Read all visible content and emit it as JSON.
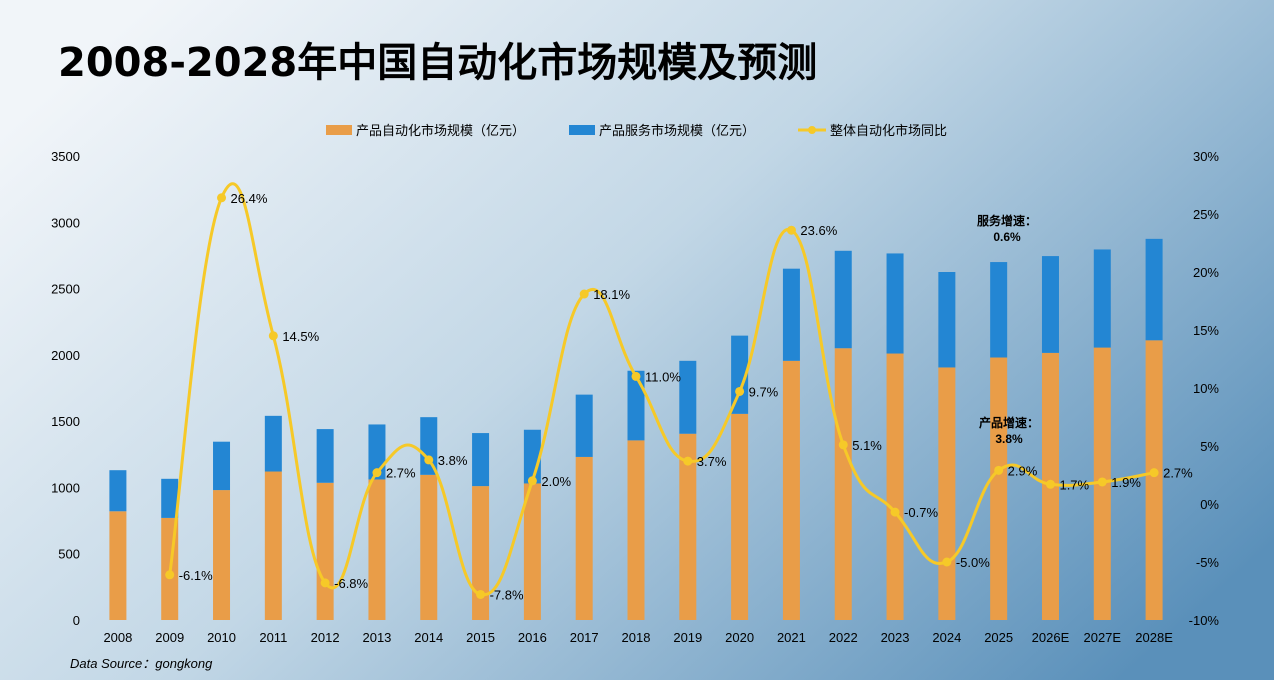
{
  "colors": {
    "product": "#E99D48",
    "service": "#2386D3",
    "growth": "#F6C928",
    "bg_left": "#EEF3F8",
    "bg_right": "#5E94BC"
  },
  "chart_data": {
    "type": "bar",
    "title": "2008-2028年中国自动化市场规模及预测",
    "source": "Data Source：gongkong",
    "categories": [
      "2008",
      "2009",
      "2010",
      "2011",
      "2012",
      "2013",
      "2014",
      "2015",
      "2016",
      "2017",
      "2018",
      "2019",
      "2020",
      "2021",
      "2022",
      "2023",
      "2024",
      "2025",
      "2026E",
      "2027E",
      "2028E"
    ],
    "stacked": true,
    "series": [
      {
        "name": "产品自动化市场规模（亿元）",
        "kind": "bar",
        "axis": "left",
        "values": [
          820,
          770,
          980,
          1120,
          1035,
          1060,
          1095,
          1010,
          1030,
          1230,
          1355,
          1405,
          1555,
          1955,
          2050,
          2010,
          1905,
          1980,
          2015,
          2055,
          2110
        ]
      },
      {
        "name": "产品服务市场规模（亿元）",
        "kind": "bar",
        "axis": "left",
        "values": [
          310,
          295,
          365,
          420,
          405,
          415,
          435,
          400,
          405,
          470,
          525,
          550,
          590,
          695,
          735,
          755,
          720,
          720,
          730,
          740,
          765
        ]
      },
      {
        "name": "整体自动化市场同比",
        "kind": "line",
        "axis": "right",
        "values": [
          null,
          -6.1,
          26.4,
          14.5,
          -6.8,
          2.7,
          3.8,
          -7.8,
          2.0,
          18.1,
          11.0,
          3.7,
          9.7,
          23.6,
          5.1,
          -0.7,
          -5.0,
          2.9,
          1.7,
          1.9,
          2.7
        ],
        "labels": [
          null,
          "-6.1%",
          "26.4%",
          "14.5%",
          "-6.8%",
          "2.7%",
          "3.8%",
          "-7.8%",
          "2.0%",
          "18.1%",
          "11.0%",
          "3.7%",
          "9.7%",
          "23.6%",
          "5.1%",
          "-0.7%",
          "-5.0%",
          "2.9%",
          "1.7%",
          "1.9%",
          "2.7%"
        ]
      }
    ],
    "y_left": {
      "min": 0,
      "max": 3500,
      "ticks": [
        "0",
        "500",
        "1000",
        "1500",
        "2000",
        "2500",
        "3000",
        "3500"
      ]
    },
    "y_right": {
      "min": -10,
      "max": 30,
      "ticks": [
        "-10%",
        "-5%",
        "0%",
        "5%",
        "10%",
        "15%",
        "20%",
        "25%",
        "30%"
      ]
    },
    "grid": false,
    "legend_position": "top-center",
    "annotations": [
      {
        "line1": "服务增速：",
        "line2": "0.6%",
        "near": "2026E"
      },
      {
        "line1": "产品增速：",
        "line2": "3.8%",
        "near": "2026E"
      }
    ]
  }
}
